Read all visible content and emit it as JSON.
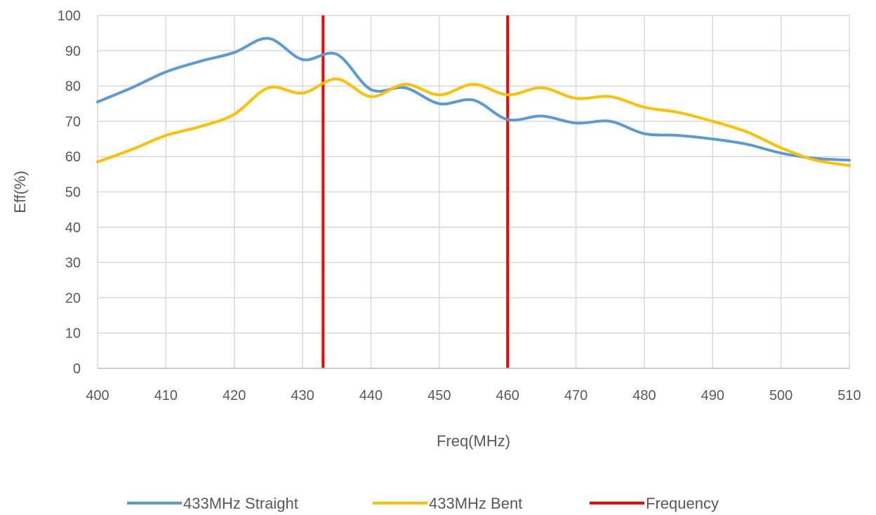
{
  "chart_data": {
    "type": "line",
    "title": "",
    "xlabel": "Freq(MHz)",
    "ylabel": "Eff(%)",
    "xlim": [
      400,
      510
    ],
    "ylim": [
      0,
      100
    ],
    "x_ticks": [
      400,
      410,
      420,
      430,
      440,
      450,
      460,
      470,
      480,
      490,
      500,
      510
    ],
    "y_ticks": [
      0,
      10,
      20,
      30,
      40,
      50,
      60,
      70,
      80,
      90,
      100
    ],
    "grid": true,
    "legend_position": "bottom",
    "series": [
      {
        "name": "433MHz Straight",
        "color": "#5B9BD5",
        "x": [
          400,
          405,
          410,
          415,
          420,
          425,
          430,
          435,
          440,
          445,
          450,
          455,
          460,
          465,
          470,
          475,
          480,
          485,
          490,
          495,
          500,
          505,
          510
        ],
        "y": [
          75.5,
          79.5,
          84,
          87,
          89.5,
          93.5,
          87.5,
          89,
          79,
          79.5,
          75,
          76,
          70.5,
          71.5,
          69.5,
          70,
          66.5,
          66,
          65,
          63.5,
          61,
          59.5,
          59
        ]
      },
      {
        "name": "433MHz Bent",
        "color": "#FFC000",
        "x": [
          400,
          405,
          410,
          415,
          420,
          425,
          430,
          435,
          440,
          445,
          450,
          455,
          460,
          465,
          470,
          475,
          480,
          485,
          490,
          495,
          500,
          505,
          510
        ],
        "y": [
          58.5,
          62,
          66,
          68.5,
          72,
          79.5,
          78,
          82,
          77,
          80.5,
          77.5,
          80.5,
          77.5,
          79.5,
          76.5,
          77,
          74,
          72.5,
          70,
          67,
          62.5,
          59,
          57.5
        ]
      },
      {
        "name": "Frequency",
        "color": "#FF0000",
        "type": "vertical_markers",
        "x": [
          433,
          460
        ]
      }
    ]
  }
}
